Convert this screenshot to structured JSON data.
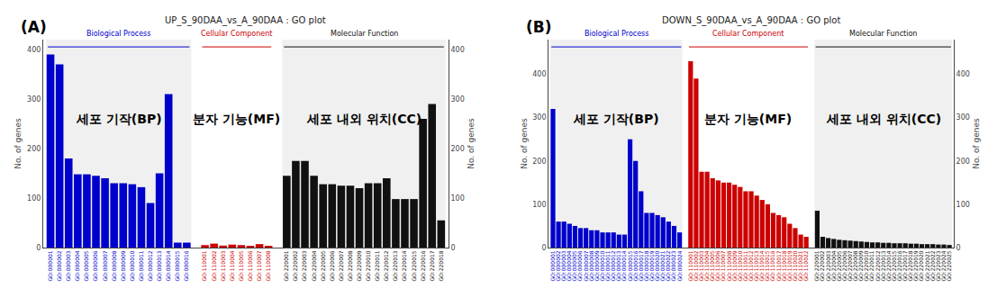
{
  "chart_data": [
    {
      "type": "bar",
      "title": "UP_S_90DAA_vs_A_90DAA : GO plot",
      "panel_label": "(A)",
      "ylabel": "No. of genes",
      "y2label": "No. of genes",
      "ylim": [
        0,
        420
      ],
      "yticks": [
        0,
        100,
        200,
        300,
        400
      ],
      "y2lim": [
        0,
        420
      ],
      "y2ticks": [
        0,
        100,
        200,
        300,
        400
      ],
      "grid": false,
      "series": [
        {
          "name": "Biological Process",
          "color": "#0000cc",
          "categories": [
            "GO:000001",
            "GO:000002",
            "GO:000003",
            "GO:000004",
            "GO:000005",
            "GO:000006",
            "GO:000007",
            "GO:000008",
            "GO:000009",
            "GO:000010",
            "GO:000011",
            "GO:000012",
            "GO:000013",
            "GO:000014",
            "GO:000015",
            "GO:000016"
          ],
          "values": [
            390,
            370,
            180,
            148,
            148,
            145,
            140,
            130,
            130,
            128,
            122,
            90,
            150,
            310,
            10,
            10
          ]
        },
        {
          "name": "Cellular Component",
          "color": "#cc0000",
          "categories": [
            "GO:110001",
            "GO:110002",
            "GO:110003",
            "GO:110004",
            "GO:110005",
            "GO:110006",
            "GO:110007",
            "GO:110008"
          ],
          "values": [
            5,
            8,
            4,
            6,
            5,
            3,
            7,
            3
          ]
        },
        {
          "name": "Molecular Function",
          "color": "#111111",
          "categories": [
            "GO:220001",
            "GO:220002",
            "GO:220003",
            "GO:220004",
            "GO:220005",
            "GO:220006",
            "GO:220007",
            "GO:220008",
            "GO:220009",
            "GO:220010",
            "GO:220011",
            "GO:220012",
            "GO:220013",
            "GO:220014",
            "GO:220015",
            "GO:220016",
            "GO:220017",
            "GO:220018"
          ],
          "values": [
            145,
            175,
            175,
            145,
            128,
            128,
            125,
            125,
            120,
            130,
            130,
            140,
            98,
            98,
            98,
            260,
            290,
            55
          ]
        }
      ],
      "annotations": [
        "세포 기작(BP)",
        "분자 기능(MF)",
        "세포 내외 위치(CC)"
      ]
    },
    {
      "type": "bar",
      "title": "DOWN_S_90DAA_vs_A_90DAA : GO plot",
      "panel_label": "(B)",
      "ylabel": "No. of genes",
      "y2label": "No. of genes",
      "ylim": [
        0,
        480
      ],
      "yticks": [
        0,
        100,
        200,
        300,
        400
      ],
      "y2lim": [
        0,
        480
      ],
      "y2ticks": [
        0,
        100,
        200,
        300,
        400
      ],
      "grid": false,
      "series": [
        {
          "name": "Biological Process",
          "color": "#0000cc",
          "categories": [
            "GO:000001",
            "GO:000002",
            "GO:000003",
            "GO:000004",
            "GO:000005",
            "GO:000006",
            "GO:000007",
            "GO:000008",
            "GO:000009",
            "GO:000010",
            "GO:000011",
            "GO:000012",
            "GO:000013",
            "GO:000014",
            "GO:000015",
            "GO:000016",
            "GO:000017",
            "GO:000018",
            "GO:000019",
            "GO:000020",
            "GO:000021",
            "GO:000022",
            "GO:000023",
            "GO:000024"
          ],
          "values": [
            320,
            60,
            60,
            55,
            50,
            45,
            45,
            40,
            40,
            35,
            35,
            35,
            30,
            30,
            250,
            200,
            130,
            80,
            80,
            75,
            70,
            60,
            50,
            35
          ]
        },
        {
          "name": "Cellular Component",
          "color": "#cc0000",
          "categories": [
            "GO:110001",
            "GO:110002",
            "GO:110003",
            "GO:110004",
            "GO:110005",
            "GO:110006",
            "GO:110007",
            "GO:110008",
            "GO:110009",
            "GO:110010",
            "GO:110011",
            "GO:110012",
            "GO:110013",
            "GO:110014",
            "GO:110015",
            "GO:110016",
            "GO:110017",
            "GO:110018",
            "GO:110019",
            "GO:110020",
            "GO:110021",
            "GO:110022"
          ],
          "values": [
            430,
            390,
            175,
            175,
            160,
            155,
            150,
            150,
            145,
            140,
            130,
            130,
            120,
            110,
            100,
            80,
            75,
            70,
            55,
            45,
            30,
            25
          ]
        },
        {
          "name": "Molecular Function",
          "color": "#111111",
          "categories": [
            "GO:220001",
            "GO:220002",
            "GO:220003",
            "GO:220004",
            "GO:220005",
            "GO:220006",
            "GO:220007",
            "GO:220008",
            "GO:220009",
            "GO:220010",
            "GO:220011",
            "GO:220012",
            "GO:220013",
            "GO:220014",
            "GO:220015",
            "GO:220016",
            "GO:220017",
            "GO:220018",
            "GO:220019",
            "GO:220020",
            "GO:220021",
            "GO:220022",
            "GO:220023",
            "GO:220024",
            "GO:220025"
          ],
          "values": [
            85,
            25,
            22,
            20,
            18,
            17,
            16,
            15,
            14,
            13,
            12,
            12,
            11,
            11,
            10,
            10,
            10,
            9,
            9,
            8,
            8,
            8,
            7,
            7,
            6
          ]
        }
      ],
      "annotations": [
        "세포 기작(BP)",
        "분자 기능(MF)",
        "세포 내외 위치(CC)"
      ]
    }
  ]
}
